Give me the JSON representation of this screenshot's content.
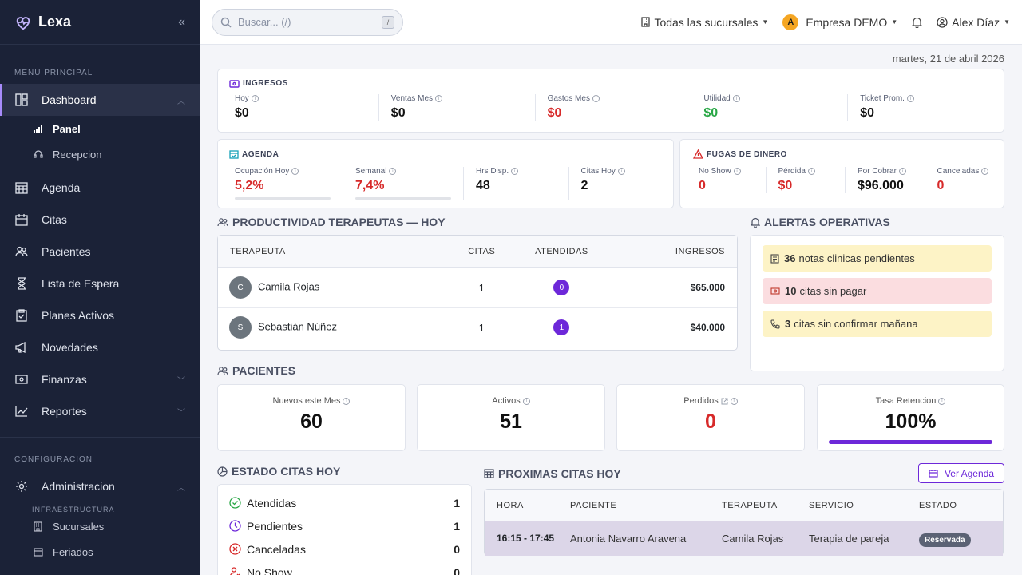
{
  "brand": {
    "name": "Lexa"
  },
  "sidebar": {
    "section_main": "MENU PRINCIPAL",
    "dashboard": "Dashboard",
    "sub": [
      "Panel",
      "Recepcion"
    ],
    "items": [
      "Agenda",
      "Citas",
      "Pacientes",
      "Lista de Espera",
      "Planes Activos",
      "Novedades",
      "Finanzas",
      "Reportes"
    ],
    "section_config": "CONFIGURACION",
    "admin": "Administracion",
    "infra_label": "INFRAESTRUCTURA",
    "infra_items": [
      "Sucursales",
      "Feriados"
    ]
  },
  "topbar": {
    "search_placeholder": "Buscar... (/)",
    "search_key": "/",
    "branch": "Todas las sucursales",
    "company_initial": "A",
    "company": "Empresa DEMO",
    "user": "Alex Díaz"
  },
  "date": "martes, 21 de abril 2026",
  "ingresos": {
    "title": "INGRESOS",
    "metrics": [
      {
        "label": "Hoy",
        "value": "$0"
      },
      {
        "label": "Ventas Mes",
        "value": "$0"
      },
      {
        "label": "Gastos Mes",
        "value": "$0"
      },
      {
        "label": "Utilidad",
        "value": "$0"
      },
      {
        "label": "Ticket Prom.",
        "value": "$0"
      }
    ]
  },
  "agenda": {
    "title": "AGENDA",
    "metrics": [
      {
        "label": "Ocupación Hoy",
        "value": "5,2%",
        "progress": 0.052
      },
      {
        "label": "Semanal",
        "value": "7,4%",
        "progress": 0.074
      },
      {
        "label": "Hrs Disp.",
        "value": "48"
      },
      {
        "label": "Citas Hoy",
        "value": "2"
      }
    ]
  },
  "fugas": {
    "title": "FUGAS DE DINERO",
    "metrics": [
      {
        "label": "No Show",
        "value": "0"
      },
      {
        "label": "Pérdida",
        "value": "$0"
      },
      {
        "label": "Por Cobrar",
        "value": "$96.000"
      },
      {
        "label": "Canceladas",
        "value": "0"
      }
    ]
  },
  "productividad": {
    "title": "PRODUCTIVIDAD TERAPEUTAS — HOY",
    "headers": [
      "TERAPEUTA",
      "CITAS",
      "ATENDIDAS",
      "INGRESOS"
    ],
    "rows": [
      {
        "initial": "C",
        "name": "Camila Rojas",
        "citas": "1",
        "atendidas": "0",
        "ingresos": "$65.000"
      },
      {
        "initial": "S",
        "name": "Sebastián Núñez",
        "citas": "1",
        "atendidas": "1",
        "ingresos": "$40.000"
      }
    ]
  },
  "alertas": {
    "title": "ALERTAS OPERATIVAS",
    "items": [
      {
        "count": "36",
        "text": "notas clinicas pendientes"
      },
      {
        "count": "10",
        "text": "citas sin pagar"
      },
      {
        "count": "3",
        "text": "citas sin confirmar mañana"
      }
    ]
  },
  "pacientes": {
    "title": "PACIENTES",
    "kpis": [
      {
        "label": "Nuevos este Mes",
        "value": "60"
      },
      {
        "label": "Activos",
        "value": "51"
      },
      {
        "label": "Perdidos",
        "value": "0"
      },
      {
        "label": "Tasa Retencion",
        "value": "100%",
        "progress": 1.0
      }
    ]
  },
  "estado": {
    "title": "ESTADO CITAS HOY",
    "rows": [
      {
        "label": "Atendidas",
        "count": "1"
      },
      {
        "label": "Pendientes",
        "count": "1"
      },
      {
        "label": "Canceladas",
        "count": "0"
      },
      {
        "label": "No Show",
        "count": "0"
      }
    ]
  },
  "proximas": {
    "title": "PROXIMAS CITAS HOY",
    "button": "Ver Agenda",
    "headers": [
      "HORA",
      "PACIENTE",
      "TERAPEUTA",
      "SERVICIO",
      "ESTADO"
    ],
    "rows": [
      {
        "hora": "16:15 - 17:45",
        "paciente": "Antonia Navarro Aravena",
        "terapeuta": "Camila Rojas",
        "servicio": "Terapia de pareja",
        "estado": "Reservada"
      }
    ]
  },
  "colors": {
    "accent": "#6d28d9",
    "danger": "#d72a2a",
    "success": "#28a745",
    "sidebar": "#1b2237"
  }
}
